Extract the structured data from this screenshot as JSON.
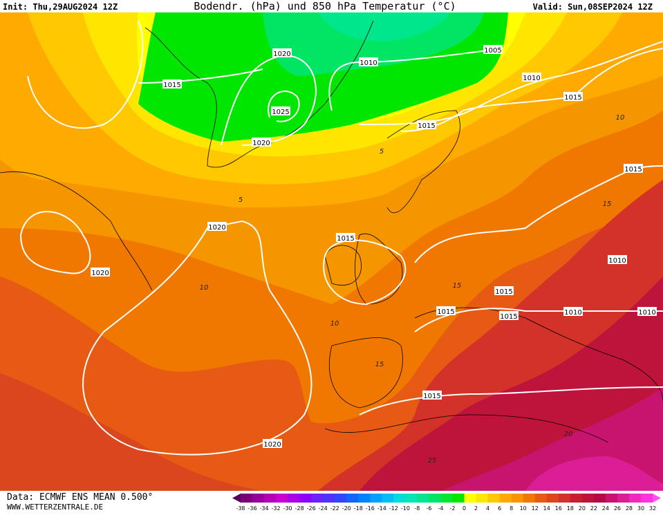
{
  "header": {
    "init": "Init: Thu,29AUG2024 12Z",
    "title": "Bodendr. (hPa) und 850 hPa Temperatur (°C)",
    "valid": "Valid: Sun,08SEP2024 12Z"
  },
  "footer": {
    "data": "Data: ECMWF ENS MEAN 0.500°",
    "site": "WWW.WETTERZENTRALE.DE"
  },
  "colorbar": {
    "ticks": [
      -38,
      -36,
      -34,
      -32,
      -30,
      -28,
      -26,
      -24,
      -22,
      -20,
      -18,
      -16,
      -14,
      -12,
      -10,
      -8,
      -6,
      -4,
      -2,
      0,
      2,
      4,
      6,
      8,
      10,
      12,
      14,
      16,
      18,
      20,
      22,
      24,
      26,
      28,
      30,
      32
    ],
    "colors": [
      "#5a005a",
      "#780078",
      "#96009a",
      "#b400b4",
      "#c800d2",
      "#aa00e6",
      "#8c00ff",
      "#6e1eff",
      "#5032ff",
      "#3246ff",
      "#1464ff",
      "#0082ff",
      "#00a0ff",
      "#00bef0",
      "#00dcdc",
      "#00e6b4",
      "#00e68c",
      "#00e664",
      "#00e632",
      "#00e600",
      "#ffff00",
      "#ffe600",
      "#ffc800",
      "#ffaa00",
      "#f59600",
      "#f07800",
      "#e65a14",
      "#dc461e",
      "#d23228",
      "#c81e32",
      "#be143c",
      "#b40a46",
      "#c8146e",
      "#dc1e96",
      "#f028be",
      "#ff32dc",
      "#ff50f0"
    ]
  },
  "isobar_labels": [
    "1020",
    "1010",
    "1005",
    "1010",
    "1015",
    "1015",
    "1025",
    "1020",
    "1015",
    "1015",
    "1020",
    "1015",
    "1020",
    "1010",
    "1015",
    "1015",
    "1015",
    "1010",
    "1010",
    "1015",
    "1020"
  ],
  "isotherm_labels": [
    "5",
    "5",
    "10",
    "10",
    "10",
    "15",
    "15",
    "15",
    "20",
    "25"
  ]
}
